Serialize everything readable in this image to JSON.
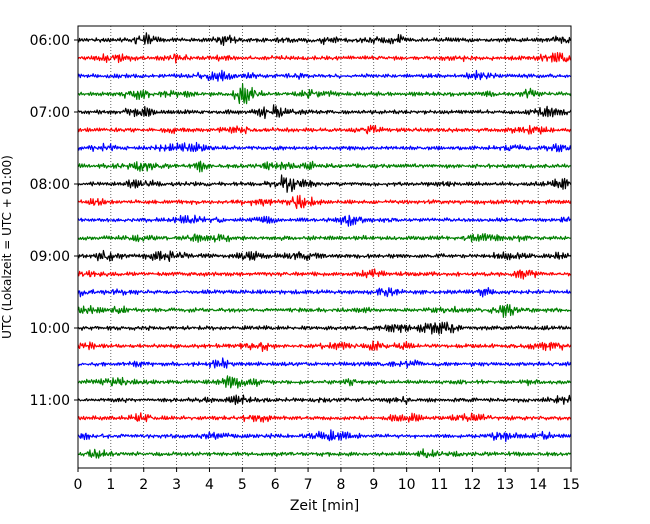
{
  "chart_data": {
    "type": "line",
    "title": "",
    "xlabel": "Zeit  [min]",
    "ylabel": "UTC (Lokalzeit = UTC + 01:00)",
    "xlim": [
      0,
      15
    ],
    "x_ticks": [
      "0",
      "1",
      "2",
      "3",
      "4",
      "5",
      "6",
      "7",
      "8",
      "9",
      "10",
      "11",
      "12",
      "13",
      "14",
      "15"
    ],
    "y_ticks": [
      "06:00",
      "07:00",
      "08:00",
      "09:00",
      "10:00",
      "11:00"
    ],
    "grid": "vertical dotted lines at every minute",
    "row_interval_minutes": 15,
    "row_start_time": "06:00",
    "row_count": 24,
    "color_cycle": [
      "#000000",
      "#ff0000",
      "#0000ff",
      "#008000"
    ]
  }
}
